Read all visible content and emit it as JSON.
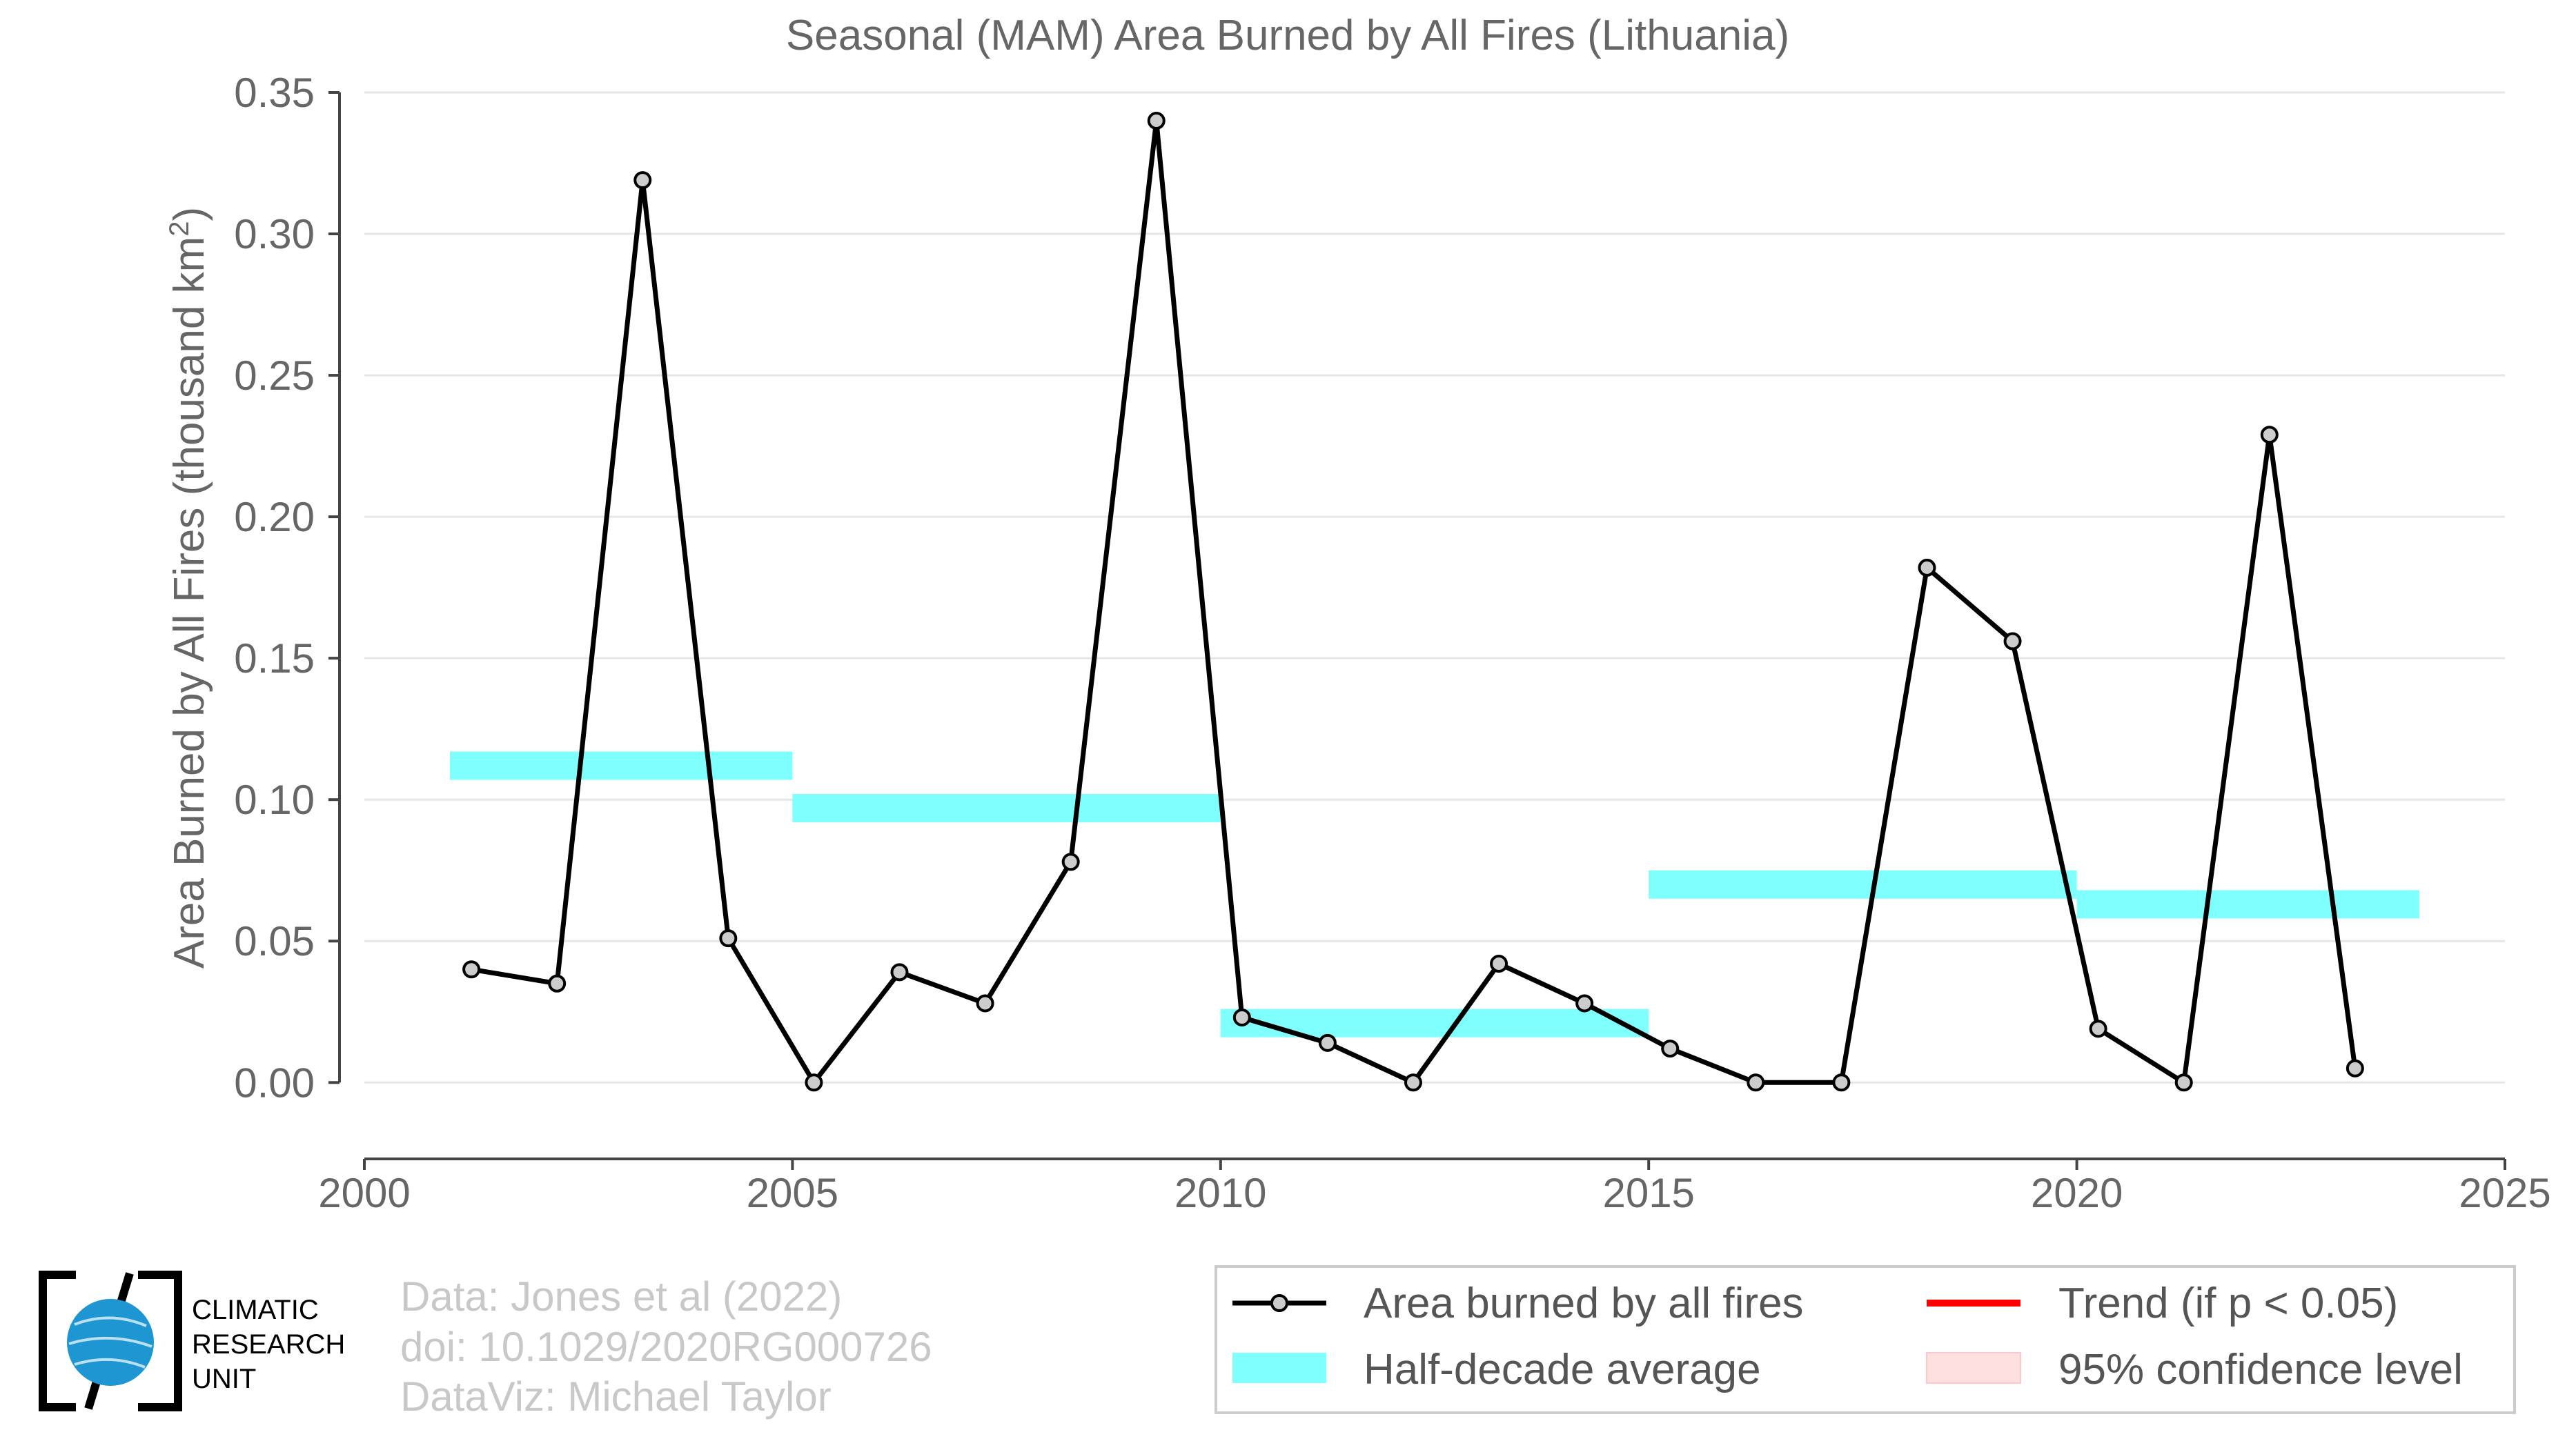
{
  "chart_data": {
    "type": "line",
    "title": "Seasonal (MAM) Area Burned by All Fires (Lithuania)",
    "ylabel_main": "Area Burned by All Fires (thousand km",
    "ylabel_sup": "2",
    "ylabel_close": ")",
    "xlim": [
      2000,
      2025
    ],
    "ylim": [
      -0.027,
      0.35
    ],
    "x_ticks": [
      2000,
      2005,
      2010,
      2015,
      2020,
      2025
    ],
    "y_ticks": [
      0.0,
      0.05,
      0.1,
      0.15,
      0.2,
      0.25,
      0.3,
      0.35
    ],
    "y_tick_labels": [
      "0.00",
      "0.05",
      "0.10",
      "0.15",
      "0.20",
      "0.25",
      "0.30",
      "0.35"
    ],
    "grid": true,
    "series": [
      {
        "name": "Area burned by all fires",
        "color": "#000000",
        "x": [
          2001.25,
          2002.25,
          2003.25,
          2004.25,
          2005.25,
          2006.25,
          2007.25,
          2008.25,
          2009.25,
          2010.25,
          2011.25,
          2012.25,
          2013.25,
          2014.25,
          2015.25,
          2016.25,
          2017.25,
          2018.25,
          2019.25,
          2020.25,
          2021.25,
          2022.25,
          2023.25
        ],
        "y": [
          0.04,
          0.035,
          0.319,
          0.051,
          0.0,
          0.039,
          0.028,
          0.078,
          0.34,
          0.023,
          0.014,
          0.0,
          0.042,
          0.028,
          0.012,
          0.0,
          0.0,
          0.182,
          0.156,
          0.019,
          0.0,
          0.229,
          0.005
        ]
      }
    ],
    "half_decade_averages": {
      "name": "Half-decade average",
      "color": "#80ffff",
      "segments": [
        {
          "x0": 2001,
          "x1": 2005,
          "y": 0.112
        },
        {
          "x0": 2005,
          "x1": 2010,
          "y": 0.097
        },
        {
          "x0": 2010,
          "x1": 2015,
          "y": 0.021
        },
        {
          "x0": 2015,
          "x1": 2020,
          "y": 0.07
        },
        {
          "x0": 2020,
          "x1": 2024,
          "y": 0.063
        }
      ]
    },
    "legend": {
      "placement": "bottom-right",
      "items": [
        {
          "label": "Area burned by all fires",
          "kind": "line-marker",
          "color": "#000000"
        },
        {
          "label": "Trend (if p < 0.05)",
          "kind": "line",
          "color": "#ff0000"
        },
        {
          "label": "Half-decade average",
          "kind": "band",
          "color": "#80ffff"
        },
        {
          "label": "95% confidence level",
          "kind": "band",
          "color": "#ffe0e0"
        }
      ]
    }
  },
  "credits": {
    "line1": "Data: Jones et al (2022)",
    "line2": "doi: 10.1029/2020RG000726",
    "line3": "DataViz: Michael Taylor"
  },
  "logo": {
    "line1": "CLIMATIC",
    "line2": "RESEARCH",
    "line3": "UNIT",
    "globe_color": "#1e96d2"
  }
}
